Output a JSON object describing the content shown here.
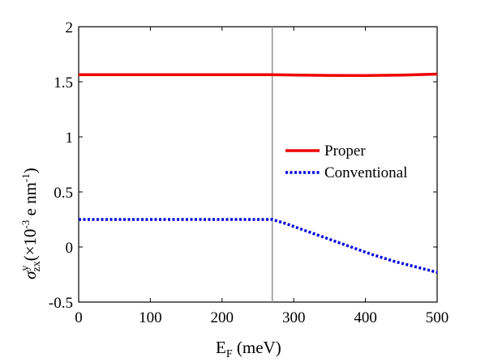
{
  "chart_data": {
    "type": "line",
    "xlim": [
      0,
      500
    ],
    "ylim": [
      -0.5,
      2
    ],
    "xticks": [
      "0",
      "100",
      "200",
      "300",
      "400",
      "500"
    ],
    "yticks": [
      "-0.5",
      "0",
      "0.5",
      "1",
      "1.5",
      "2"
    ],
    "xlabel": {
      "main": "E",
      "sub": "F",
      "unit": " (meV)"
    },
    "ylabel": {
      "sym": "σ",
      "sup": "y",
      "sub": "zx",
      "unit_open": "(×10",
      "exp": "-3",
      "unit_mid": " e nm",
      "exp2": "-1",
      "unit_close": ")"
    },
    "vline_x": 270,
    "legend_position": "right-center",
    "grid": false,
    "series": [
      {
        "name": "Proper",
        "color": "#ee0000",
        "style": "solid",
        "x": [
          0,
          50,
          100,
          150,
          200,
          250,
          270,
          300,
          350,
          400,
          450,
          500
        ],
        "y": [
          1.565,
          1.565,
          1.565,
          1.565,
          1.565,
          1.565,
          1.565,
          1.562,
          1.558,
          1.557,
          1.56,
          1.57
        ]
      },
      {
        "name": "Conventional",
        "color": "#0000dd",
        "style": "dotted",
        "x": [
          0,
          50,
          100,
          150,
          200,
          250,
          270,
          290,
          320,
          350,
          380,
          410,
          440,
          470,
          500
        ],
        "y": [
          0.25,
          0.25,
          0.25,
          0.25,
          0.25,
          0.25,
          0.25,
          0.21,
          0.14,
          0.07,
          0.0,
          -0.07,
          -0.13,
          -0.18,
          -0.23
        ]
      }
    ]
  }
}
